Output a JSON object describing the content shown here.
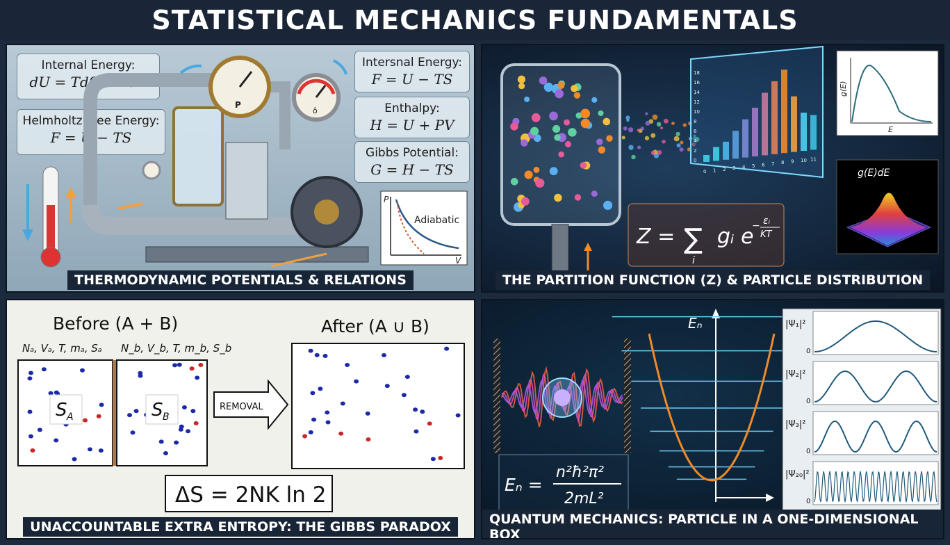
{
  "title": "STATISTICAL MECHANICS FUNDAMENTALS",
  "panel1": {
    "caption": "THERMODYNAMIC POTENTIALS & RELATIONS",
    "left_boxes": [
      {
        "label": "Internal Energy:",
        "eq": "dU = TdS − PdV"
      },
      {
        "label": "Helmholtz Free Energy:",
        "eq": "F = U − TS"
      }
    ],
    "right_boxes": [
      {
        "label": "Intersnal Energy:",
        "eq": "F = U − TS"
      },
      {
        "label": "Enthalpy:",
        "eq": "H = U + PV"
      },
      {
        "label": "Gibbs Potential:",
        "eq": "G = H − TS"
      }
    ],
    "gauge1": "P",
    "gauge2": "ô",
    "pv_graph": {
      "ylabel": "P",
      "xlabel": "V",
      "curve": "Adiabatic"
    }
  },
  "panel2": {
    "caption": "THE PARTITION FUNCTION (Z) & PARTICLE DISTRIBUTION",
    "formula": "Z = Σ gᵢ e^(−εᵢ/KT)",
    "formula_lhs": "Z =",
    "formula_sum": "∑",
    "formula_sub": "i",
    "formula_g": "gᵢ e",
    "formula_exp_num": "εᵢ",
    "formula_exp_den": "KT",
    "formula_minus": "−",
    "ge_plot": {
      "ylabel": "g(E)",
      "xlabel": "E"
    },
    "surface_label": "g(E)dE",
    "hist_x_ticks": [
      "0",
      "1",
      "2",
      "3",
      "4",
      "5",
      "6",
      "7",
      "8",
      "9",
      "10",
      "11"
    ],
    "hist_y_ticks": [
      "18",
      "16",
      "14",
      "12",
      "10",
      "8",
      "6",
      "4",
      "2",
      "0"
    ],
    "colors": {
      "accent": "#f08a2a",
      "cyan": "#3fd0e8"
    }
  },
  "panel3": {
    "caption": "UNACCOUNTABLE EXTRA ENTROPY: THE GIBBS PARADOX",
    "before_title": "Before (A + B)",
    "after_title": "After (A ∪ B)",
    "a_vars": "Nₐ, Vₐ, T, mₐ, Sₐ",
    "b_vars": "N_b, V_b, T, m_b, S_b",
    "sa_label": "S",
    "sa_sub": "A",
    "sb_label": "S",
    "sb_sub": "B",
    "removal_label": "REMOVAL",
    "entropy_eq": "ΔS = 2NK ln 2"
  },
  "panel4": {
    "caption": "QUANTUM MECHANICS: PARTICLE IN A ONE-DIMENSIONAL BOX",
    "energy_axis": "Eₙ",
    "energy_eq_lhs": "Eₙ =",
    "energy_eq_num": "n²ħ²π²",
    "energy_eq_den": "2mL²",
    "psi_rows": [
      {
        "label": "|Ψ₁|²",
        "zero": "0",
        "n": 1
      },
      {
        "label": "|Ψ₂|²",
        "zero": "0",
        "n": 2
      },
      {
        "label": "|Ψ₃|²",
        "zero": "0",
        "n": 3
      },
      {
        "label": "|Ψ₂₀|²",
        "zero": "0",
        "n": 20
      }
    ]
  }
}
